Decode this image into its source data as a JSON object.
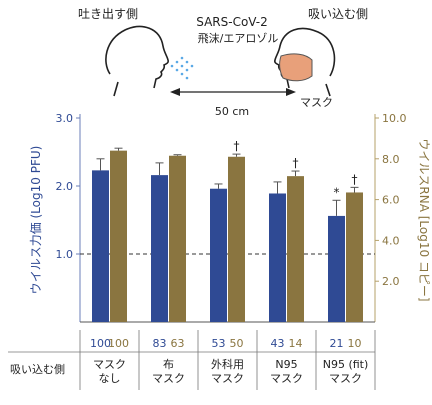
{
  "illustration": {
    "exhaler_label": "吐き出す側",
    "inhaler_label": "吸い込む側",
    "virus_title": "SARS-CoV-2",
    "virus_subtitle": "飛沫/エアロゾル",
    "distance_label": "50 cm",
    "mask_label": "マスク",
    "spray_color": "#5aa9e6",
    "mask_color": "#e8a07a"
  },
  "chart_data": {
    "type": "bar",
    "categories": [
      [
        "マスク",
        "なし"
      ],
      [
        "布",
        "マスク"
      ],
      [
        "外科用",
        "マスク"
      ],
      [
        "N95",
        "マスク"
      ],
      [
        "N95 (fit)",
        "マスク"
      ]
    ],
    "row_header": "吸い込む側",
    "series": [
      {
        "axis": "left",
        "color": "#2f4a94",
        "values": [
          2.23,
          2.16,
          1.96,
          1.89,
          1.56
        ],
        "errors": [
          0.17,
          0.18,
          0.07,
          0.17,
          0.23
        ],
        "percent": [
          "100",
          "83",
          "53",
          "43",
          "21"
        ]
      },
      {
        "axis": "right",
        "color": "#8a7540",
        "values": [
          8.4,
          8.15,
          8.1,
          7.15,
          6.35
        ],
        "errors": [
          0.12,
          0.05,
          0.13,
          0.25,
          0.25
        ],
        "percent": [
          "100",
          "63",
          "50",
          "14",
          "10"
        ]
      }
    ],
    "y_left": {
      "label": "ウイルス力価 (Log10 PFU)",
      "ylim": [
        0,
        3
      ],
      "ticks": [
        "3.0",
        "2.0",
        "1.0"
      ],
      "tick_values": [
        3,
        2,
        1
      ],
      "color": "#2f4a94"
    },
    "y_right": {
      "label": "ウイルスRNA [Log10 コピー]",
      "ylim": [
        0,
        10
      ],
      "ticks": [
        "10.0",
        "8.0",
        "6.0",
        "4.0",
        "2.0"
      ],
      "tick_values": [
        10,
        8,
        6,
        4,
        2
      ],
      "color": "#8a7540"
    },
    "reference_line": {
      "axis": "left",
      "value": 1.0
    },
    "markers": [
      {
        "category": 2,
        "series": 1,
        "symbol": "†"
      },
      {
        "category": 3,
        "series": 1,
        "symbol": "†"
      },
      {
        "category": 4,
        "series": 1,
        "symbol": "†"
      },
      {
        "category": 4,
        "series": 0,
        "symbol": "*"
      }
    ]
  }
}
